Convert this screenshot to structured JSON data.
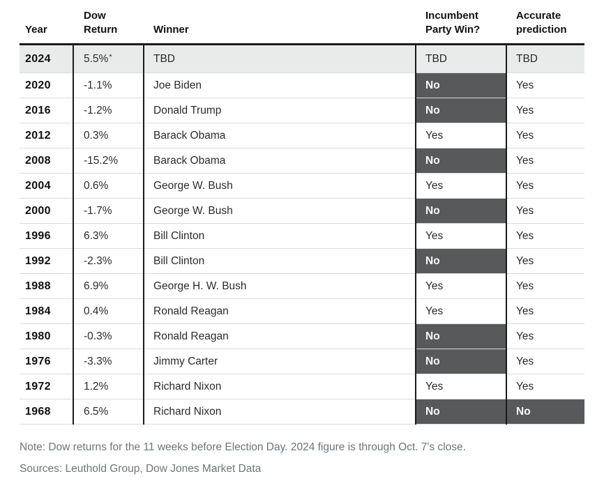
{
  "chart_data": {
    "type": "table",
    "title": "",
    "columns": [
      {
        "label": "Year"
      },
      {
        "label": "Dow\nReturn"
      },
      {
        "label": "Winner"
      },
      {
        "label": "Incumbent\nParty Win?"
      },
      {
        "label": "Accurate\nprediction"
      }
    ],
    "asterisk": "*",
    "rows": [
      {
        "year": "2024",
        "dow": "5.5%",
        "dow_asterisk": true,
        "winner": "TBD",
        "incumbent": "TBD",
        "accurate": "TBD",
        "highlight": true
      },
      {
        "year": "2020",
        "dow": "-1.1%",
        "winner": "Joe Biden",
        "incumbent": "No",
        "accurate": "Yes"
      },
      {
        "year": "2016",
        "dow": "-1.2%",
        "winner": "Donald Trump",
        "incumbent": "No",
        "accurate": "Yes"
      },
      {
        "year": "2012",
        "dow": "0.3%",
        "winner": "Barack Obama",
        "incumbent": "Yes",
        "accurate": "Yes"
      },
      {
        "year": "2008",
        "dow": "-15.2%",
        "winner": "Barack Obama",
        "incumbent": "No",
        "accurate": "Yes"
      },
      {
        "year": "2004",
        "dow": "0.6%",
        "winner": "George W. Bush",
        "incumbent": "Yes",
        "accurate": "Yes"
      },
      {
        "year": "2000",
        "dow": "-1.7%",
        "winner": "George W. Bush",
        "incumbent": "No",
        "accurate": "Yes"
      },
      {
        "year": "1996",
        "dow": "6.3%",
        "winner": "Bill Clinton",
        "incumbent": "Yes",
        "accurate": "Yes"
      },
      {
        "year": "1992",
        "dow": "-2.3%",
        "winner": "Bill Clinton",
        "incumbent": "No",
        "accurate": "Yes"
      },
      {
        "year": "1988",
        "dow": "6.9%",
        "winner": "George H. W. Bush",
        "incumbent": "Yes",
        "accurate": "Yes"
      },
      {
        "year": "1984",
        "dow": "0.4%",
        "winner": "Ronald Reagan",
        "incumbent": "Yes",
        "accurate": "Yes"
      },
      {
        "year": "1980",
        "dow": "-0.3%",
        "winner": "Ronald Reagan",
        "incumbent": "No",
        "accurate": "Yes"
      },
      {
        "year": "1976",
        "dow": "-3.3%",
        "winner": "Jimmy Carter",
        "incumbent": "No",
        "accurate": "Yes"
      },
      {
        "year": "1972",
        "dow": "1.2%",
        "winner": "Richard Nixon",
        "incumbent": "Yes",
        "accurate": "Yes"
      },
      {
        "year": "1968",
        "dow": "6.5%",
        "winner": "Richard Nixon",
        "incumbent": "No",
        "accurate": "No"
      }
    ]
  },
  "footer": {
    "note": "Note: Dow returns for the 11 weeks before Election Day. 2024 figure is through Oct. 7's close.",
    "sources": "Sources: Leuthold Group, Dow Jones Market Data"
  },
  "colors": {
    "dark_cell": "#58595a",
    "dark_cell_text": "#fafafa",
    "highlight_row": "#e9eaea",
    "header_rule": "#1a1a1a",
    "row_separator": "#d9dbdc",
    "footer_text": "#6d7579"
  }
}
